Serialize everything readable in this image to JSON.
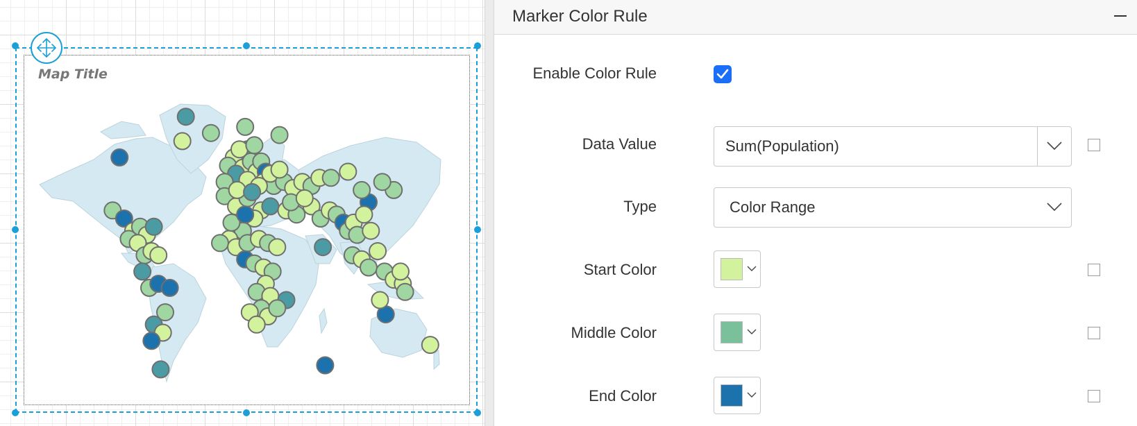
{
  "map": {
    "title": "Map Title",
    "land_color": "#d4e9f1",
    "marker_stroke": "#6f6f6f",
    "markers": [
      {
        "lon": -42,
        "lat": 72,
        "shade": "mid-dark"
      },
      {
        "lon": -100,
        "lat": 52,
        "shade": "end"
      },
      {
        "lon": -45,
        "lat": 60,
        "shade": "start"
      },
      {
        "lon": -20,
        "lat": 64,
        "shade": "mid"
      },
      {
        "lon": 10,
        "lat": 67,
        "shade": "mid"
      },
      {
        "lon": 40,
        "lat": 63,
        "shade": "mid"
      },
      {
        "lon": 12,
        "lat": 56,
        "shade": "mid-dark"
      },
      {
        "lon": 0,
        "lat": 52,
        "shade": "start"
      },
      {
        "lon": -5,
        "lat": 48,
        "shade": "mid"
      },
      {
        "lon": 8,
        "lat": 47,
        "shade": "start"
      },
      {
        "lon": 15,
        "lat": 50,
        "shade": "mid"
      },
      {
        "lon": 20,
        "lat": 45,
        "shade": "start"
      },
      {
        "lon": 24,
        "lat": 50,
        "shade": "mid"
      },
      {
        "lon": 28,
        "lat": 45,
        "shade": "end"
      },
      {
        "lon": 2,
        "lat": 44,
        "shade": "mid-dark"
      },
      {
        "lon": 12,
        "lat": 41,
        "shade": "start"
      },
      {
        "lon": -8,
        "lat": 40,
        "shade": "mid"
      },
      {
        "lon": 26,
        "lat": 40,
        "shade": "start"
      },
      {
        "lon": 35,
        "lat": 38,
        "shade": "mid"
      },
      {
        "lon": 32,
        "lat": 44,
        "shade": "start"
      },
      {
        "lon": 44,
        "lat": 40,
        "shade": "mid"
      },
      {
        "lon": 52,
        "lat": 37,
        "shade": "start"
      },
      {
        "lon": 60,
        "lat": 40,
        "shade": "start"
      },
      {
        "lon": 68,
        "lat": 38,
        "shade": "mid"
      },
      {
        "lon": 75,
        "lat": 42,
        "shade": "start"
      },
      {
        "lon": 85,
        "lat": 42,
        "shade": "mid"
      },
      {
        "lon": 100,
        "lat": 45,
        "shade": "start"
      },
      {
        "lon": 140,
        "lat": 36,
        "shade": "mid"
      },
      {
        "lon": 130,
        "lat": 40,
        "shade": "mid"
      },
      {
        "lon": 118,
        "lat": 30,
        "shade": "end"
      },
      {
        "lon": 112,
        "lat": 36,
        "shade": "mid"
      },
      {
        "lon": -8,
        "lat": 33,
        "shade": "mid"
      },
      {
        "lon": 2,
        "lat": 28,
        "shade": "start"
      },
      {
        "lon": 12,
        "lat": 32,
        "shade": "mid"
      },
      {
        "lon": 24,
        "lat": 26,
        "shade": "start"
      },
      {
        "lon": 32,
        "lat": 28,
        "shade": "mid-dark"
      },
      {
        "lon": 46,
        "lat": 26,
        "shade": "start"
      },
      {
        "lon": 55,
        "lat": 24,
        "shade": "mid"
      },
      {
        "lon": 68,
        "lat": 28,
        "shade": "start"
      },
      {
        "lon": 76,
        "lat": 22,
        "shade": "mid"
      },
      {
        "lon": 84,
        "lat": 26,
        "shade": "start"
      },
      {
        "lon": 90,
        "lat": 24,
        "shade": "mid"
      },
      {
        "lon": 96,
        "lat": 20,
        "shade": "end"
      },
      {
        "lon": 100,
        "lat": 16,
        "shade": "mid"
      },
      {
        "lon": 105,
        "lat": 20,
        "shade": "start"
      },
      {
        "lon": 108,
        "lat": 14,
        "shade": "mid"
      },
      {
        "lon": 114,
        "lat": 24,
        "shade": "start"
      },
      {
        "lon": 120,
        "lat": 16,
        "shade": "start"
      },
      {
        "lon": 104,
        "lat": 4,
        "shade": "mid"
      },
      {
        "lon": 112,
        "lat": 2,
        "shade": "start"
      },
      {
        "lon": 118,
        "lat": -2,
        "shade": "mid"
      },
      {
        "lon": 126,
        "lat": 6,
        "shade": "start"
      },
      {
        "lon": 132,
        "lat": -4,
        "shade": "mid"
      },
      {
        "lon": 140,
        "lat": -8,
        "shade": "start"
      },
      {
        "lon": 148,
        "lat": -10,
        "shade": "start"
      },
      {
        "lon": 150,
        "lat": -14,
        "shade": "mid"
      },
      {
        "lon": 133,
        "lat": -25,
        "shade": "end"
      },
      {
        "lon": 172,
        "lat": -40,
        "shade": "start"
      },
      {
        "lon": 78,
        "lat": 8,
        "shade": "mid-dark"
      },
      {
        "lon": 80,
        "lat": -50,
        "shade": "end"
      },
      {
        "lon": 18,
        "lat": 22,
        "shade": "start"
      },
      {
        "lon": 8,
        "lat": 16,
        "shade": "mid"
      },
      {
        "lon": -4,
        "lat": 12,
        "shade": "start"
      },
      {
        "lon": -12,
        "lat": 10,
        "shade": "mid"
      },
      {
        "lon": 2,
        "lat": 8,
        "shade": "start"
      },
      {
        "lon": 12,
        "lat": 10,
        "shade": "mid"
      },
      {
        "lon": 22,
        "lat": 12,
        "shade": "start"
      },
      {
        "lon": 30,
        "lat": 10,
        "shade": "mid"
      },
      {
        "lon": 38,
        "lat": 8,
        "shade": "start"
      },
      {
        "lon": 10,
        "lat": 2,
        "shade": "end"
      },
      {
        "lon": 18,
        "lat": 0,
        "shade": "mid"
      },
      {
        "lon": 26,
        "lat": -2,
        "shade": "start"
      },
      {
        "lon": 34,
        "lat": -4,
        "shade": "mid"
      },
      {
        "lon": 28,
        "lat": -10,
        "shade": "start"
      },
      {
        "lon": 20,
        "lat": -14,
        "shade": "mid"
      },
      {
        "lon": 32,
        "lat": -16,
        "shade": "start"
      },
      {
        "lon": 24,
        "lat": -22,
        "shade": "mid"
      },
      {
        "lon": 14,
        "lat": -24,
        "shade": "start"
      },
      {
        "lon": 30,
        "lat": -26,
        "shade": "start"
      },
      {
        "lon": 20,
        "lat": -30,
        "shade": "start"
      },
      {
        "lon": 46,
        "lat": -18,
        "shade": "mid-dark"
      },
      {
        "lon": 38,
        "lat": -22,
        "shade": "mid"
      },
      {
        "lon": -106,
        "lat": 26,
        "shade": "mid"
      },
      {
        "lon": -96,
        "lat": 22,
        "shade": "end"
      },
      {
        "lon": -88,
        "lat": 16,
        "shade": "start"
      },
      {
        "lon": -82,
        "lat": 18,
        "shade": "mid"
      },
      {
        "lon": -76,
        "lat": 14,
        "shade": "start"
      },
      {
        "lon": -70,
        "lat": 18,
        "shade": "mid-dark"
      },
      {
        "lon": -92,
        "lat": 12,
        "shade": "mid"
      },
      {
        "lon": -84,
        "lat": 10,
        "shade": "start"
      },
      {
        "lon": -78,
        "lat": 4,
        "shade": "mid"
      },
      {
        "lon": -72,
        "lat": 6,
        "shade": "start"
      },
      {
        "lon": -66,
        "lat": 4,
        "shade": "start"
      },
      {
        "lon": -80,
        "lat": -4,
        "shade": "mid-dark"
      },
      {
        "lon": -74,
        "lat": -12,
        "shade": "mid"
      },
      {
        "lon": -66,
        "lat": -10,
        "shade": "end"
      },
      {
        "lon": -56,
        "lat": -12,
        "shade": "end"
      },
      {
        "lon": -60,
        "lat": -24,
        "shade": "mid"
      },
      {
        "lon": -70,
        "lat": -30,
        "shade": "mid-dark"
      },
      {
        "lon": -62,
        "lat": -34,
        "shade": "start"
      },
      {
        "lon": -72,
        "lat": -38,
        "shade": "end"
      },
      {
        "lon": -64,
        "lat": -52,
        "shade": "mid-dark"
      },
      {
        "lon": 5,
        "lat": 56,
        "shade": "start"
      },
      {
        "lon": 18,
        "lat": 58,
        "shade": "mid"
      },
      {
        "lon": 22,
        "lat": 38,
        "shade": "start"
      },
      {
        "lon": 40,
        "lat": 46,
        "shade": "start"
      },
      {
        "lon": 50,
        "lat": 30,
        "shade": "mid"
      },
      {
        "lon": 62,
        "lat": 32,
        "shade": "start"
      },
      {
        "lon": 3,
        "lat": 36,
        "shade": "start"
      },
      {
        "lon": 16,
        "lat": 35,
        "shade": "mid-dark"
      },
      {
        "lon": -2,
        "lat": 20,
        "shade": "mid"
      },
      {
        "lon": 10,
        "lat": 24,
        "shade": "end"
      },
      {
        "lon": 128,
        "lat": -18,
        "shade": "start"
      },
      {
        "lon": 146,
        "lat": -4,
        "shade": "start"
      }
    ]
  },
  "panel": {
    "title": "Marker Color Rule",
    "enable_color_rule": {
      "label": "Enable Color Rule",
      "checked": true
    },
    "data_value": {
      "label": "Data Value",
      "value": "Sum(Population)"
    },
    "type": {
      "label": "Type",
      "value": "Color Range"
    },
    "start_color": {
      "label": "Start Color",
      "color": "#d3f29e"
    },
    "middle_color": {
      "label": "Middle Color",
      "color": "#7ac09a"
    },
    "end_color": {
      "label": "End Color",
      "color": "#1b72ad"
    }
  },
  "marker_shades": {
    "start": "#d3f29e",
    "mid": "#9fd6a1",
    "mid-dark": "#4b9ba5",
    "end": "#1b72ad"
  }
}
